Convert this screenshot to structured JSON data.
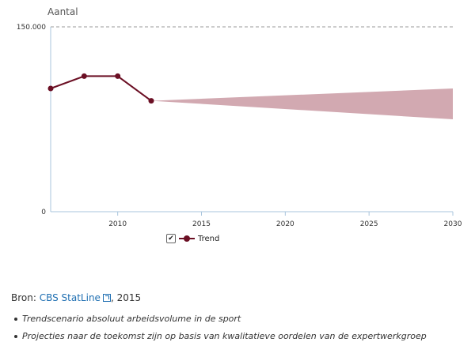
{
  "chart_data": {
    "type": "line",
    "ylabel": "Aantal",
    "ylim": [
      0,
      150000
    ],
    "xlim": [
      2006,
      2030
    ],
    "y_ticks": [
      "0",
      "150.000"
    ],
    "x_ticks": [
      "2010",
      "2015",
      "2020",
      "2025",
      "2030"
    ],
    "x_tick_values": [
      2010,
      2015,
      2020,
      2025,
      2030
    ],
    "grid": "dashed line at 150.000",
    "legend": "bottom",
    "series": [
      {
        "name": "Trend",
        "x": [
          2006,
          2008,
          2010,
          2012
        ],
        "values": [
          100000,
          110000,
          110000,
          90000
        ],
        "color": "#6b0f24"
      }
    ],
    "projection": {
      "x": [
        2012,
        2030
      ],
      "upper": [
        90000,
        100000
      ],
      "lower": [
        90000,
        75000
      ],
      "color": "#d2a9b1"
    }
  },
  "legend": {
    "checkbox": "✔",
    "label": "Trend"
  },
  "source": {
    "prefix": "Bron: ",
    "link_text": "CBS StatLine",
    "suffix": ", 2015"
  },
  "notes": [
    "Trendscenario absoluut arbeidsvolume in de sport",
    "Projecties naar de toekomst zijn op basis van kwalitatieve oordelen van de expertwerkgroep"
  ]
}
